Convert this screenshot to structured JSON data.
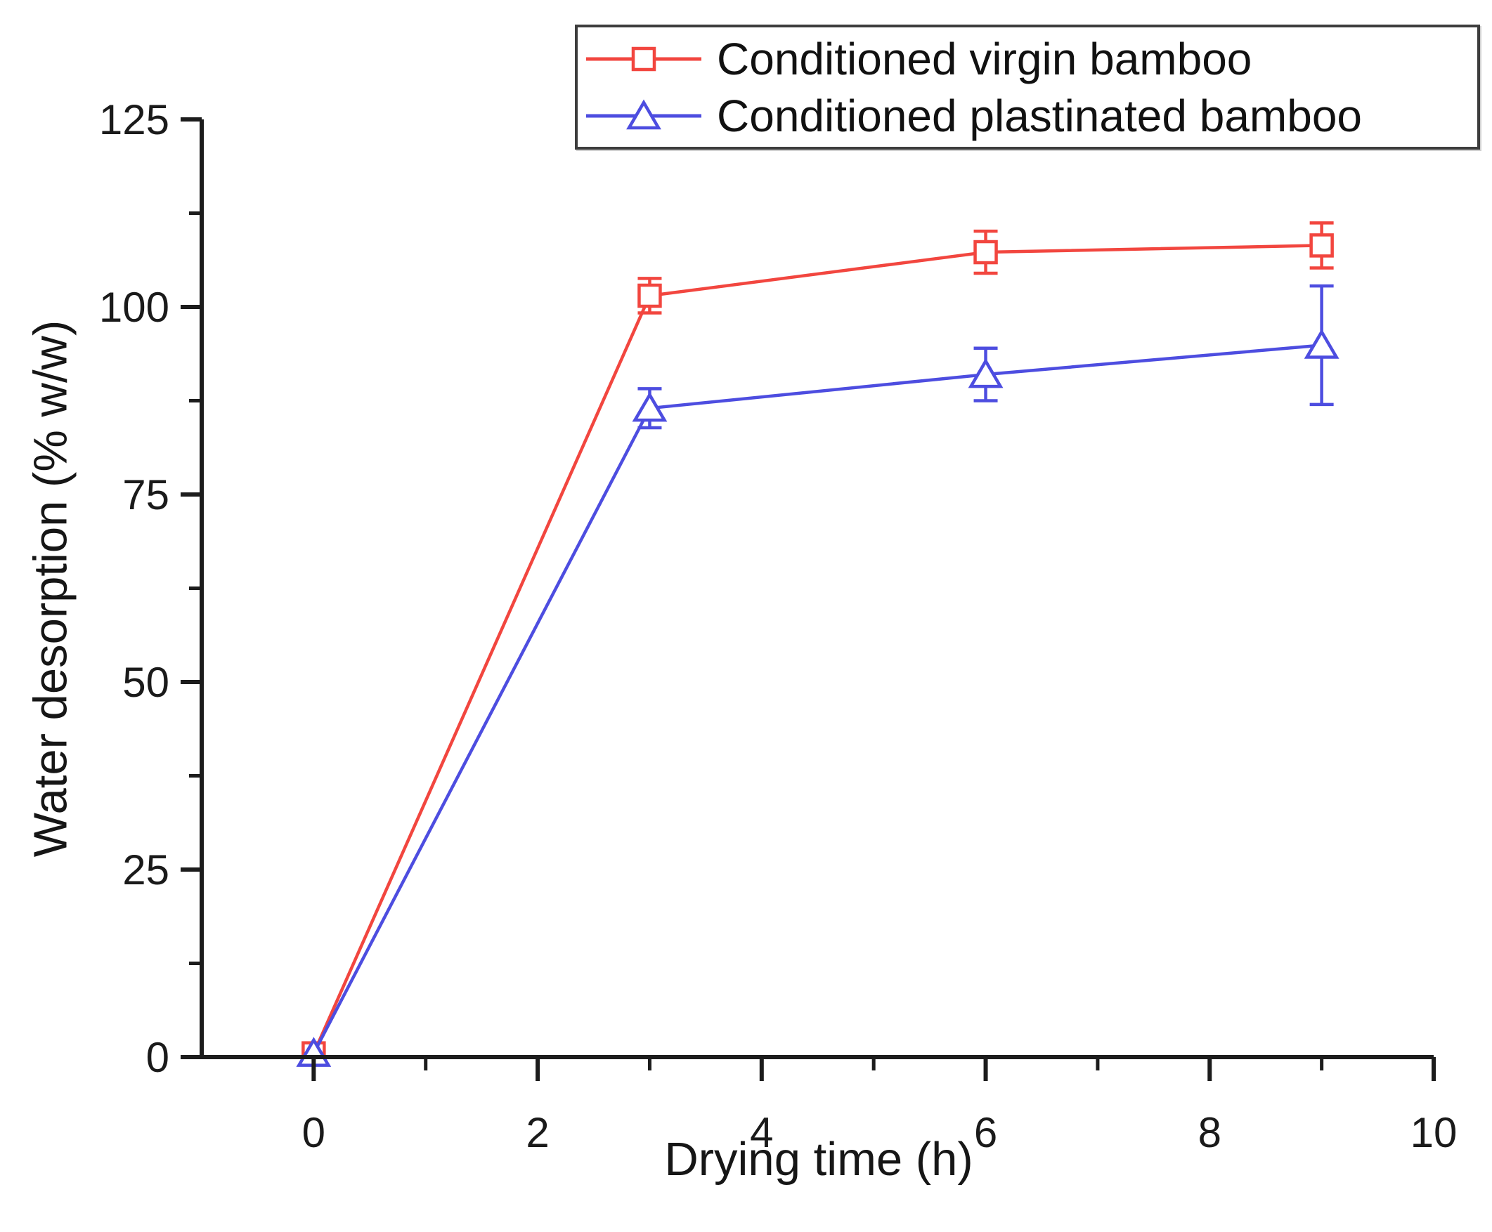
{
  "chart_data": {
    "type": "line",
    "title": "",
    "xlabel": "Drying time (h)",
    "ylabel": "Water desorption (% w/w)",
    "xlim": [
      -1,
      10
    ],
    "ylim": [
      0,
      125
    ],
    "x_ticks": [
      0,
      2,
      4,
      6,
      8,
      10
    ],
    "x_minor_ticks": [
      1,
      3,
      5,
      7,
      9
    ],
    "y_ticks": [
      0,
      25,
      50,
      75,
      100,
      125
    ],
    "y_minor_ticks": [
      12.5,
      37.5,
      62.5,
      87.5,
      112.5
    ],
    "grid": false,
    "legend_position": "top",
    "axis_color": "#1c1c1c",
    "tick_label_color": "#1a1a1a",
    "series": [
      {
        "name": "Conditioned virgin bamboo",
        "color": "#f2463f",
        "marker": "square",
        "x": [
          0,
          3,
          6,
          9
        ],
        "y": [
          0.5,
          101.5,
          107.3,
          108.2
        ],
        "yerr": [
          0,
          2.3,
          2.8,
          3.0
        ]
      },
      {
        "name": "Conditioned plastinated bamboo",
        "color": "#4d4de0",
        "marker": "triangle",
        "x": [
          0,
          3,
          6,
          9
        ],
        "y": [
          0.5,
          86.5,
          91.0,
          94.9
        ],
        "yerr": [
          0,
          2.6,
          3.5,
          7.9
        ]
      }
    ]
  }
}
